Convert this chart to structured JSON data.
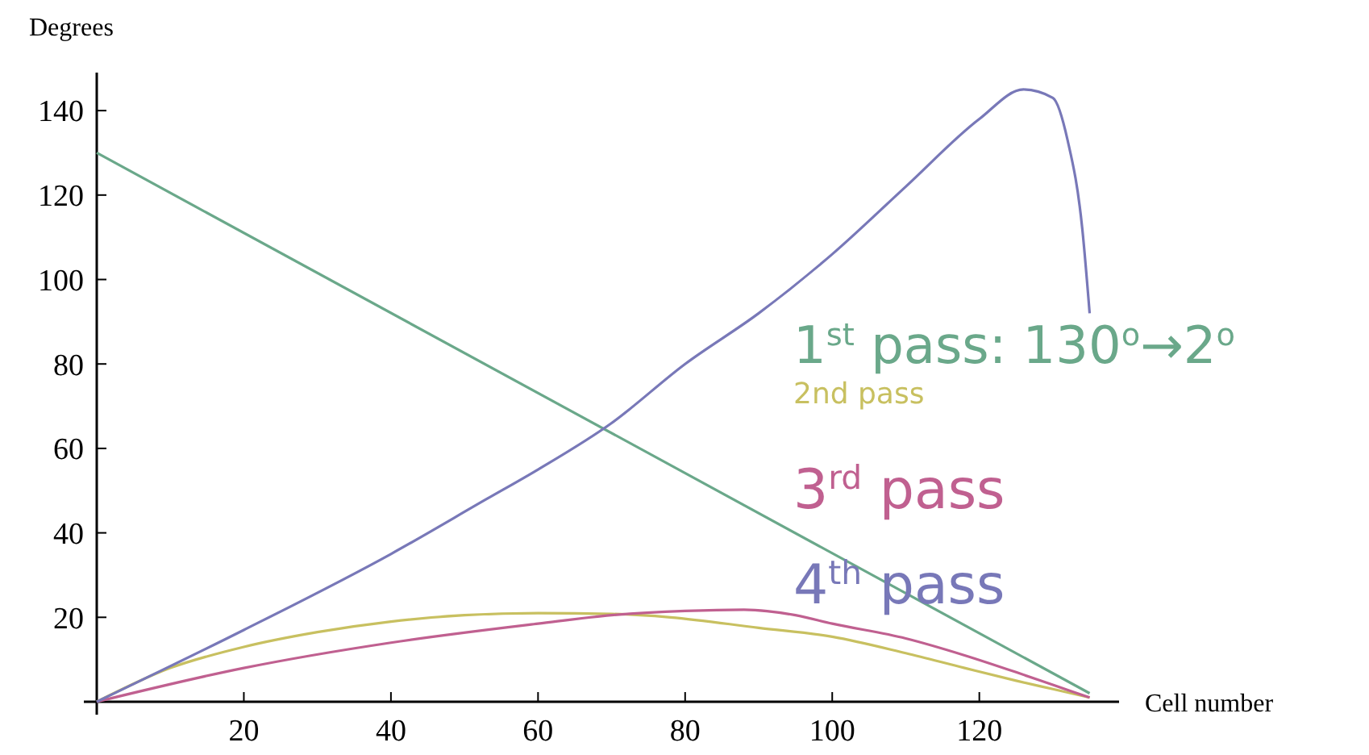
{
  "chart_data": {
    "type": "line",
    "xlabel": "Cell number",
    "ylabel": "Degrees",
    "xlim": [
      0,
      139
    ],
    "ylim": [
      0,
      149
    ],
    "xticks": [
      20,
      40,
      60,
      80,
      100,
      120
    ],
    "yticks": [
      20,
      40,
      60,
      80,
      100,
      120,
      140
    ],
    "grid": false,
    "series": [
      {
        "name": "1$^{st}$ pass: 130$^{o}$→2$^{o}$",
        "color": "#6aa88a",
        "x": [
          0,
          135
        ],
        "values": [
          130,
          2
        ]
      },
      {
        "name": "2nd pass",
        "color": "#c8c060",
        "x": [
          0,
          10,
          20,
          30,
          40,
          50,
          60,
          70,
          78,
          90,
          100,
          110,
          118,
          125,
          130,
          135
        ],
        "values": [
          0,
          8,
          13,
          16.5,
          19,
          20.5,
          21,
          20.8,
          20,
          17.5,
          15.4,
          11.5,
          8,
          5,
          3,
          1
        ]
      },
      {
        "name": "3$^{rd}$ pass",
        "color": "#c06090",
        "x": [
          0,
          20,
          40,
          60,
          70,
          80,
          88,
          95,
          100,
          110,
          118,
          125,
          130,
          135
        ],
        "values": [
          0,
          8,
          14,
          18.5,
          20.5,
          21.5,
          21.8,
          20.5,
          18.5,
          15,
          11,
          7,
          4,
          1
        ]
      },
      {
        "name": "4$^{th}$ pass",
        "color": "#7878b8",
        "x": [
          0,
          20,
          40,
          53,
          60,
          70,
          80,
          90,
          100,
          110,
          120,
          126,
          130,
          132,
          134,
          135
        ],
        "values": [
          0,
          17,
          35,
          48,
          55,
          66,
          80,
          92,
          106,
          122,
          138,
          145,
          143,
          133,
          112,
          92
        ]
      }
    ]
  }
}
